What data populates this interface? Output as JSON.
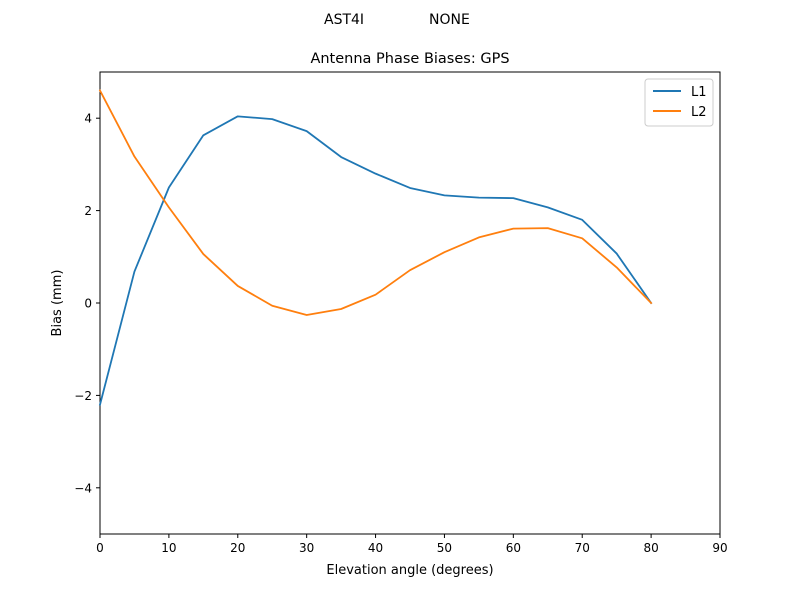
{
  "figure": {
    "suptitle_left": "AST4I",
    "suptitle_right": "NONE"
  },
  "chart_data": {
    "type": "line",
    "title": "Antenna Phase Biases: GPS",
    "xlabel": "Elevation angle (degrees)",
    "ylabel": "Bias (mm)",
    "xlim": [
      0,
      90
    ],
    "ylim": [
      -5,
      5
    ],
    "xticks": [
      0,
      10,
      20,
      30,
      40,
      50,
      60,
      70,
      80,
      90
    ],
    "yticks": [
      -4,
      -2,
      0,
      2,
      4
    ],
    "grid": false,
    "legend_position": "top-right",
    "x": [
      0,
      5,
      10,
      15,
      20,
      25,
      30,
      35,
      40,
      45,
      50,
      55,
      60,
      65,
      70,
      75,
      80
    ],
    "series": [
      {
        "name": "L1",
        "color": "#1f77b4",
        "values": [
          -2.2,
          0.68,
          2.5,
          3.63,
          4.04,
          3.98,
          3.72,
          3.16,
          2.8,
          2.49,
          2.33,
          2.28,
          2.27,
          2.07,
          1.8,
          1.07,
          0.0
        ]
      },
      {
        "name": "L2",
        "color": "#ff7f0e",
        "values": [
          4.6,
          3.17,
          2.07,
          1.06,
          0.37,
          -0.06,
          -0.26,
          -0.13,
          0.18,
          0.71,
          1.1,
          1.42,
          1.61,
          1.62,
          1.4,
          0.77,
          0.0
        ]
      }
    ]
  }
}
